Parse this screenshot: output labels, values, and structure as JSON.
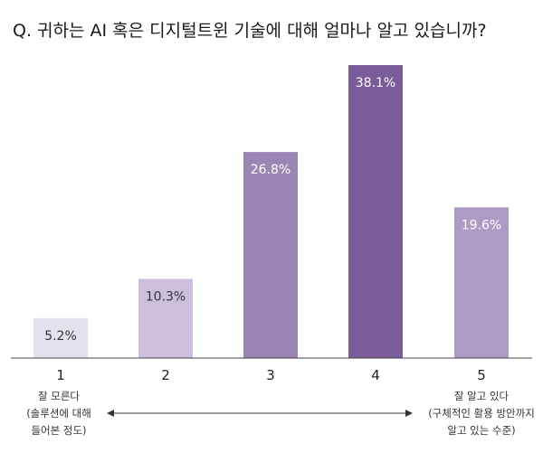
{
  "chart_data": {
    "type": "bar",
    "title": "Q. 귀하는 AI 혹은 디지털트윈 기술에 대해 얼마나 알고 있습니까?",
    "categories": [
      "1",
      "2",
      "3",
      "4",
      "5"
    ],
    "values": [
      5.2,
      10.3,
      26.8,
      38.1,
      19.6
    ],
    "value_labels": [
      "5.2%",
      "10.3%",
      "26.8%",
      "38.1%",
      "19.6%"
    ],
    "colors": [
      "#e5e0ee",
      "#cbbfdc",
      "#9b85b5",
      "#7a5c9b",
      "#ad9bc6"
    ],
    "label_colors": [
      "#333333",
      "#333333",
      "#ffffff",
      "#ffffff",
      "#ffffff"
    ],
    "xlabel": "",
    "ylabel": "",
    "ylim": [
      0,
      40
    ],
    "grid": false,
    "scale_annotation": {
      "low": [
        "잘 모른다",
        "(솔루션에 대해",
        "들어본 정도)"
      ],
      "high": [
        "잘 알고 있다",
        "(구체적인 활용 방안까지",
        "알고 있는 수준)"
      ]
    }
  }
}
